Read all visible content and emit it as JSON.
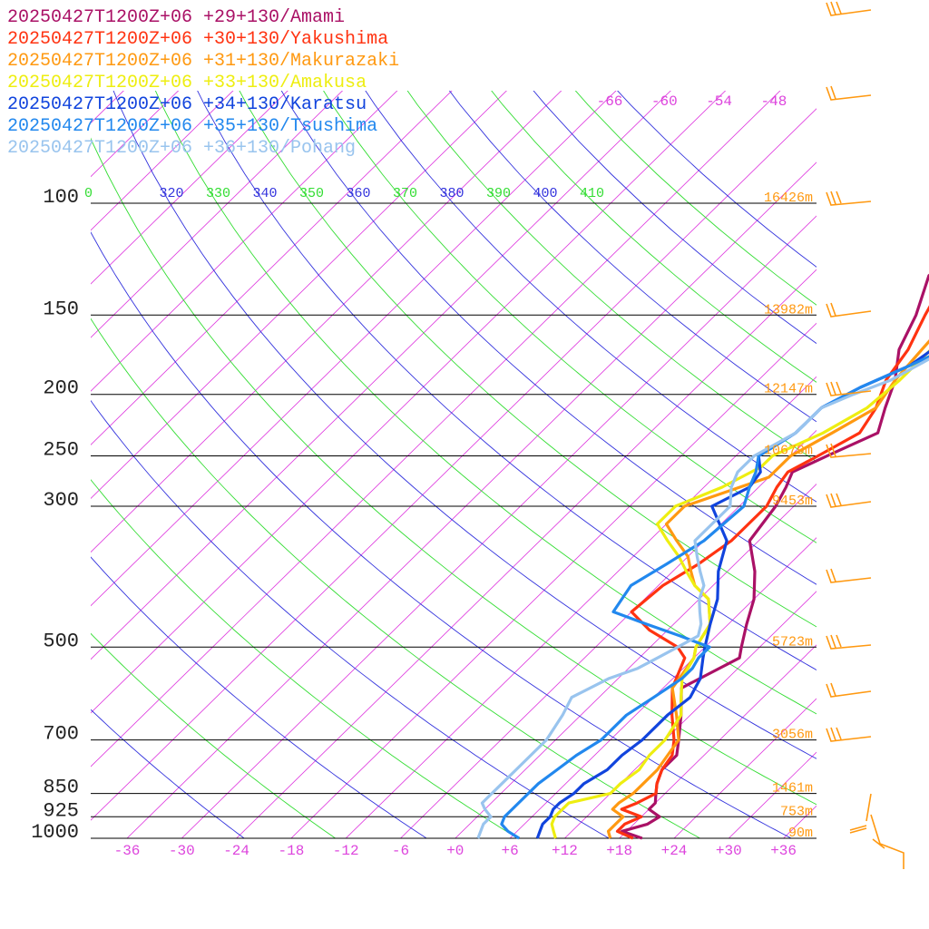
{
  "chart_data": {
    "type": "line",
    "chart_kind": "skew-t log-p sounding",
    "legend_position": "top-left",
    "grid": true,
    "x_axis": {
      "range": [
        -42,
        42
      ],
      "tick_labels": [
        "-36",
        "-30",
        "-24",
        "-18",
        "-12",
        "-6",
        "+0",
        "+6",
        "+12",
        "+18",
        "+24",
        "+30",
        "+36"
      ],
      "color": "#dd44dd"
    },
    "y_axis": {
      "scale": "log",
      "range": [
        1000,
        100
      ],
      "levels": [
        100,
        150,
        200,
        250,
        300,
        500,
        700,
        850,
        925,
        1000
      ],
      "tick_labels": [
        "100",
        "150",
        "200",
        "250",
        "300",
        "500",
        "700",
        "850",
        "925",
        "1000"
      ]
    },
    "height_labels": [
      {
        "p": 100,
        "text": "16426m"
      },
      {
        "p": 150,
        "text": "13982m"
      },
      {
        "p": 200,
        "text": "12147m"
      },
      {
        "p": 250,
        "text": "10679m"
      },
      {
        "p": 300,
        "text": "9453m"
      },
      {
        "p": 500,
        "text": "5723m"
      },
      {
        "p": 700,
        "text": "3056m"
      },
      {
        "p": 850,
        "text": "1461m"
      },
      {
        "p": 925,
        "text": "753m"
      },
      {
        "p": 1000,
        "text": "90m"
      }
    ],
    "theta_labels": [
      "0",
      "320",
      "330",
      "340",
      "350",
      "360",
      "370",
      "380",
      "390",
      "400",
      "410"
    ],
    "upper_temp_labels": [
      "-66",
      "-60",
      "-54",
      "-48"
    ],
    "series": [
      {
        "name": "20250427T1200Z+06 +29+130/Amami",
        "color": "#aa1166",
        "points": [
          [
            1000,
            20.5
          ],
          [
            975,
            17.5
          ],
          [
            950,
            19.5
          ],
          [
            925,
            20
          ],
          [
            900,
            18
          ],
          [
            880,
            18
          ],
          [
            850,
            17
          ],
          [
            820,
            16
          ],
          [
            780,
            15
          ],
          [
            740,
            15
          ],
          [
            700,
            13.5
          ],
          [
            640,
            11
          ],
          [
            580,
            8
          ],
          [
            520,
            11
          ],
          [
            500,
            10
          ],
          [
            460,
            8
          ],
          [
            420,
            6
          ],
          [
            380,
            3
          ],
          [
            340,
            -1
          ],
          [
            300,
            -2
          ],
          [
            280,
            -3
          ],
          [
            265,
            -4
          ],
          [
            250,
            -2
          ],
          [
            230,
            1
          ],
          [
            210,
            -1
          ],
          [
            190,
            -3
          ],
          [
            170,
            -6
          ],
          [
            150,
            -8
          ],
          [
            130,
            -11
          ],
          [
            115,
            -10
          ],
          [
            100,
            -7
          ]
        ]
      },
      {
        "name": "20250427T1200Z+06 +30+130/Yakushima",
        "color": "#ff3311",
        "points": [
          [
            1000,
            19.5
          ],
          [
            975,
            17
          ],
          [
            950,
            17
          ],
          [
            925,
            18
          ],
          [
            900,
            15
          ],
          [
            880,
            16
          ],
          [
            850,
            17
          ],
          [
            820,
            16
          ],
          [
            780,
            15
          ],
          [
            740,
            14.5
          ],
          [
            700,
            13
          ],
          [
            640,
            10
          ],
          [
            580,
            7
          ],
          [
            520,
            5
          ],
          [
            500,
            3
          ],
          [
            470,
            -2
          ],
          [
            440,
            -6
          ],
          [
            400,
            -5.5
          ],
          [
            370,
            -4
          ],
          [
            340,
            -3
          ],
          [
            300,
            -3
          ],
          [
            280,
            -4
          ],
          [
            265,
            -4.5
          ],
          [
            250,
            -3
          ],
          [
            230,
            -1
          ],
          [
            210,
            -2
          ],
          [
            190,
            -4
          ],
          [
            170,
            -5
          ],
          [
            150,
            -7
          ],
          [
            130,
            -9
          ],
          [
            115,
            -8
          ],
          [
            100,
            -6
          ]
        ]
      },
      {
        "name": "20250427T1200Z+06 +31+130/Makurazaki",
        "color": "#ff9911",
        "points": [
          [
            1000,
            17
          ],
          [
            975,
            16
          ],
          [
            950,
            16
          ],
          [
            925,
            16
          ],
          [
            900,
            14
          ],
          [
            880,
            14
          ],
          [
            850,
            14.5
          ],
          [
            820,
            14.5
          ],
          [
            780,
            14.5
          ],
          [
            740,
            14
          ],
          [
            700,
            13.5
          ],
          [
            640,
            10.5
          ],
          [
            580,
            7
          ],
          [
            520,
            6
          ],
          [
            500,
            5
          ],
          [
            460,
            4
          ],
          [
            420,
            1
          ],
          [
            400,
            -2
          ],
          [
            380,
            -4
          ],
          [
            360,
            -6
          ],
          [
            340,
            -9
          ],
          [
            320,
            -12
          ],
          [
            300,
            -12
          ],
          [
            270,
            -6
          ],
          [
            250,
            -6
          ],
          [
            230,
            -4
          ],
          [
            210,
            -2
          ],
          [
            190,
            -3
          ],
          [
            170,
            -3.5
          ],
          [
            150,
            -4
          ],
          [
            130,
            -5.5
          ],
          [
            115,
            -4
          ],
          [
            100,
            -2
          ]
        ]
      },
      {
        "name": "20250427T1200Z+06 +33+130/Amakusa",
        "color": "#eeee11",
        "points": [
          [
            1000,
            11
          ],
          [
            975,
            10
          ],
          [
            950,
            9
          ],
          [
            925,
            8.5
          ],
          [
            900,
            8.5
          ],
          [
            880,
            8.5
          ],
          [
            850,
            12
          ],
          [
            820,
            12
          ],
          [
            780,
            12.5
          ],
          [
            740,
            12
          ],
          [
            700,
            12
          ],
          [
            640,
            11
          ],
          [
            600,
            9
          ],
          [
            560,
            7
          ],
          [
            520,
            6
          ],
          [
            500,
            5
          ],
          [
            460,
            4
          ],
          [
            420,
            1
          ],
          [
            400,
            -2
          ],
          [
            380,
            -4.5
          ],
          [
            360,
            -7
          ],
          [
            340,
            -10
          ],
          [
            320,
            -13
          ],
          [
            300,
            -13
          ],
          [
            280,
            -10
          ],
          [
            260,
            -8
          ],
          [
            250,
            -8
          ],
          [
            230,
            -5
          ],
          [
            210,
            -3
          ],
          [
            190,
            -2.5
          ],
          [
            170,
            -2.5
          ],
          [
            150,
            -2
          ],
          [
            130,
            -3
          ],
          [
            115,
            -2
          ],
          [
            100,
            -1
          ]
        ]
      },
      {
        "name": "20250427T1200Z+06 +34+130/Karatsu",
        "color": "#1144dd",
        "points": [
          [
            1000,
            9
          ],
          [
            975,
            8.5
          ],
          [
            950,
            8
          ],
          [
            925,
            8
          ],
          [
            900,
            7.5
          ],
          [
            880,
            7.5
          ],
          [
            850,
            8
          ],
          [
            820,
            8
          ],
          [
            780,
            9
          ],
          [
            740,
            9
          ],
          [
            700,
            9.5
          ],
          [
            640,
            9.5
          ],
          [
            600,
            10
          ],
          [
            560,
            9
          ],
          [
            520,
            7
          ],
          [
            500,
            6
          ],
          [
            460,
            4
          ],
          [
            420,
            2
          ],
          [
            380,
            -1
          ],
          [
            340,
            -3.5
          ],
          [
            300,
            -9
          ],
          [
            280,
            -7
          ],
          [
            265,
            -7.5
          ],
          [
            250,
            -9.5
          ],
          [
            230,
            -8
          ],
          [
            210,
            -8
          ],
          [
            195,
            -6
          ],
          [
            180,
            -3
          ],
          [
            165,
            -2
          ],
          [
            150,
            -2
          ],
          [
            130,
            -1
          ],
          [
            115,
            0
          ],
          [
            100,
            1
          ]
        ]
      },
      {
        "name": "20250427T1200Z+06 +35+130/Tsushima",
        "color": "#2288ee",
        "points": [
          [
            1000,
            7
          ],
          [
            975,
            5
          ],
          [
            950,
            3.5
          ],
          [
            925,
            3
          ],
          [
            900,
            3
          ],
          [
            880,
            3
          ],
          [
            850,
            3
          ],
          [
            820,
            3
          ],
          [
            780,
            3.5
          ],
          [
            740,
            4
          ],
          [
            700,
            5
          ],
          [
            640,
            5
          ],
          [
            600,
            6
          ],
          [
            560,
            7
          ],
          [
            540,
            7
          ],
          [
            520,
            6.5
          ],
          [
            500,
            6.5
          ],
          [
            480,
            2
          ],
          [
            460,
            -3
          ],
          [
            440,
            -8
          ],
          [
            400,
            -9
          ],
          [
            370,
            -7.5
          ],
          [
            340,
            -6
          ],
          [
            300,
            -5.5
          ],
          [
            280,
            -7
          ],
          [
            265,
            -8
          ],
          [
            250,
            -9.5
          ],
          [
            230,
            -8
          ],
          [
            210,
            -8
          ],
          [
            195,
            -6
          ],
          [
            180,
            -3
          ],
          [
            165,
            0
          ],
          [
            150,
            0
          ],
          [
            130,
            1.5
          ],
          [
            115,
            2
          ],
          [
            100,
            4
          ]
        ]
      },
      {
        "name": "20250427T1200Z+06 +36+130/Pohang",
        "color": "#99c4ee",
        "points": [
          [
            1000,
            2.5
          ],
          [
            975,
            2
          ],
          [
            950,
            1.5
          ],
          [
            925,
            1.5
          ],
          [
            900,
            0
          ],
          [
            880,
            -1
          ],
          [
            850,
            -1
          ],
          [
            820,
            -1
          ],
          [
            780,
            -1
          ],
          [
            740,
            -1
          ],
          [
            700,
            -1
          ],
          [
            640,
            -2
          ],
          [
            600,
            -3
          ],
          [
            560,
            -1
          ],
          [
            540,
            1
          ],
          [
            520,
            2
          ],
          [
            500,
            3
          ],
          [
            480,
            4
          ],
          [
            460,
            3
          ],
          [
            440,
            1.5
          ],
          [
            420,
            0
          ],
          [
            400,
            -1
          ],
          [
            380,
            -3
          ],
          [
            360,
            -5
          ],
          [
            340,
            -7
          ],
          [
            300,
            -7
          ],
          [
            280,
            -9
          ],
          [
            265,
            -10
          ],
          [
            250,
            -10
          ],
          [
            230,
            -8
          ],
          [
            210,
            -8
          ],
          [
            200,
            -6
          ],
          [
            190,
            -3.5
          ],
          [
            175,
            -1.5
          ],
          [
            165,
            0
          ],
          [
            150,
            1
          ],
          [
            130,
            2
          ],
          [
            115,
            3
          ],
          [
            100,
            5
          ]
        ]
      }
    ]
  }
}
